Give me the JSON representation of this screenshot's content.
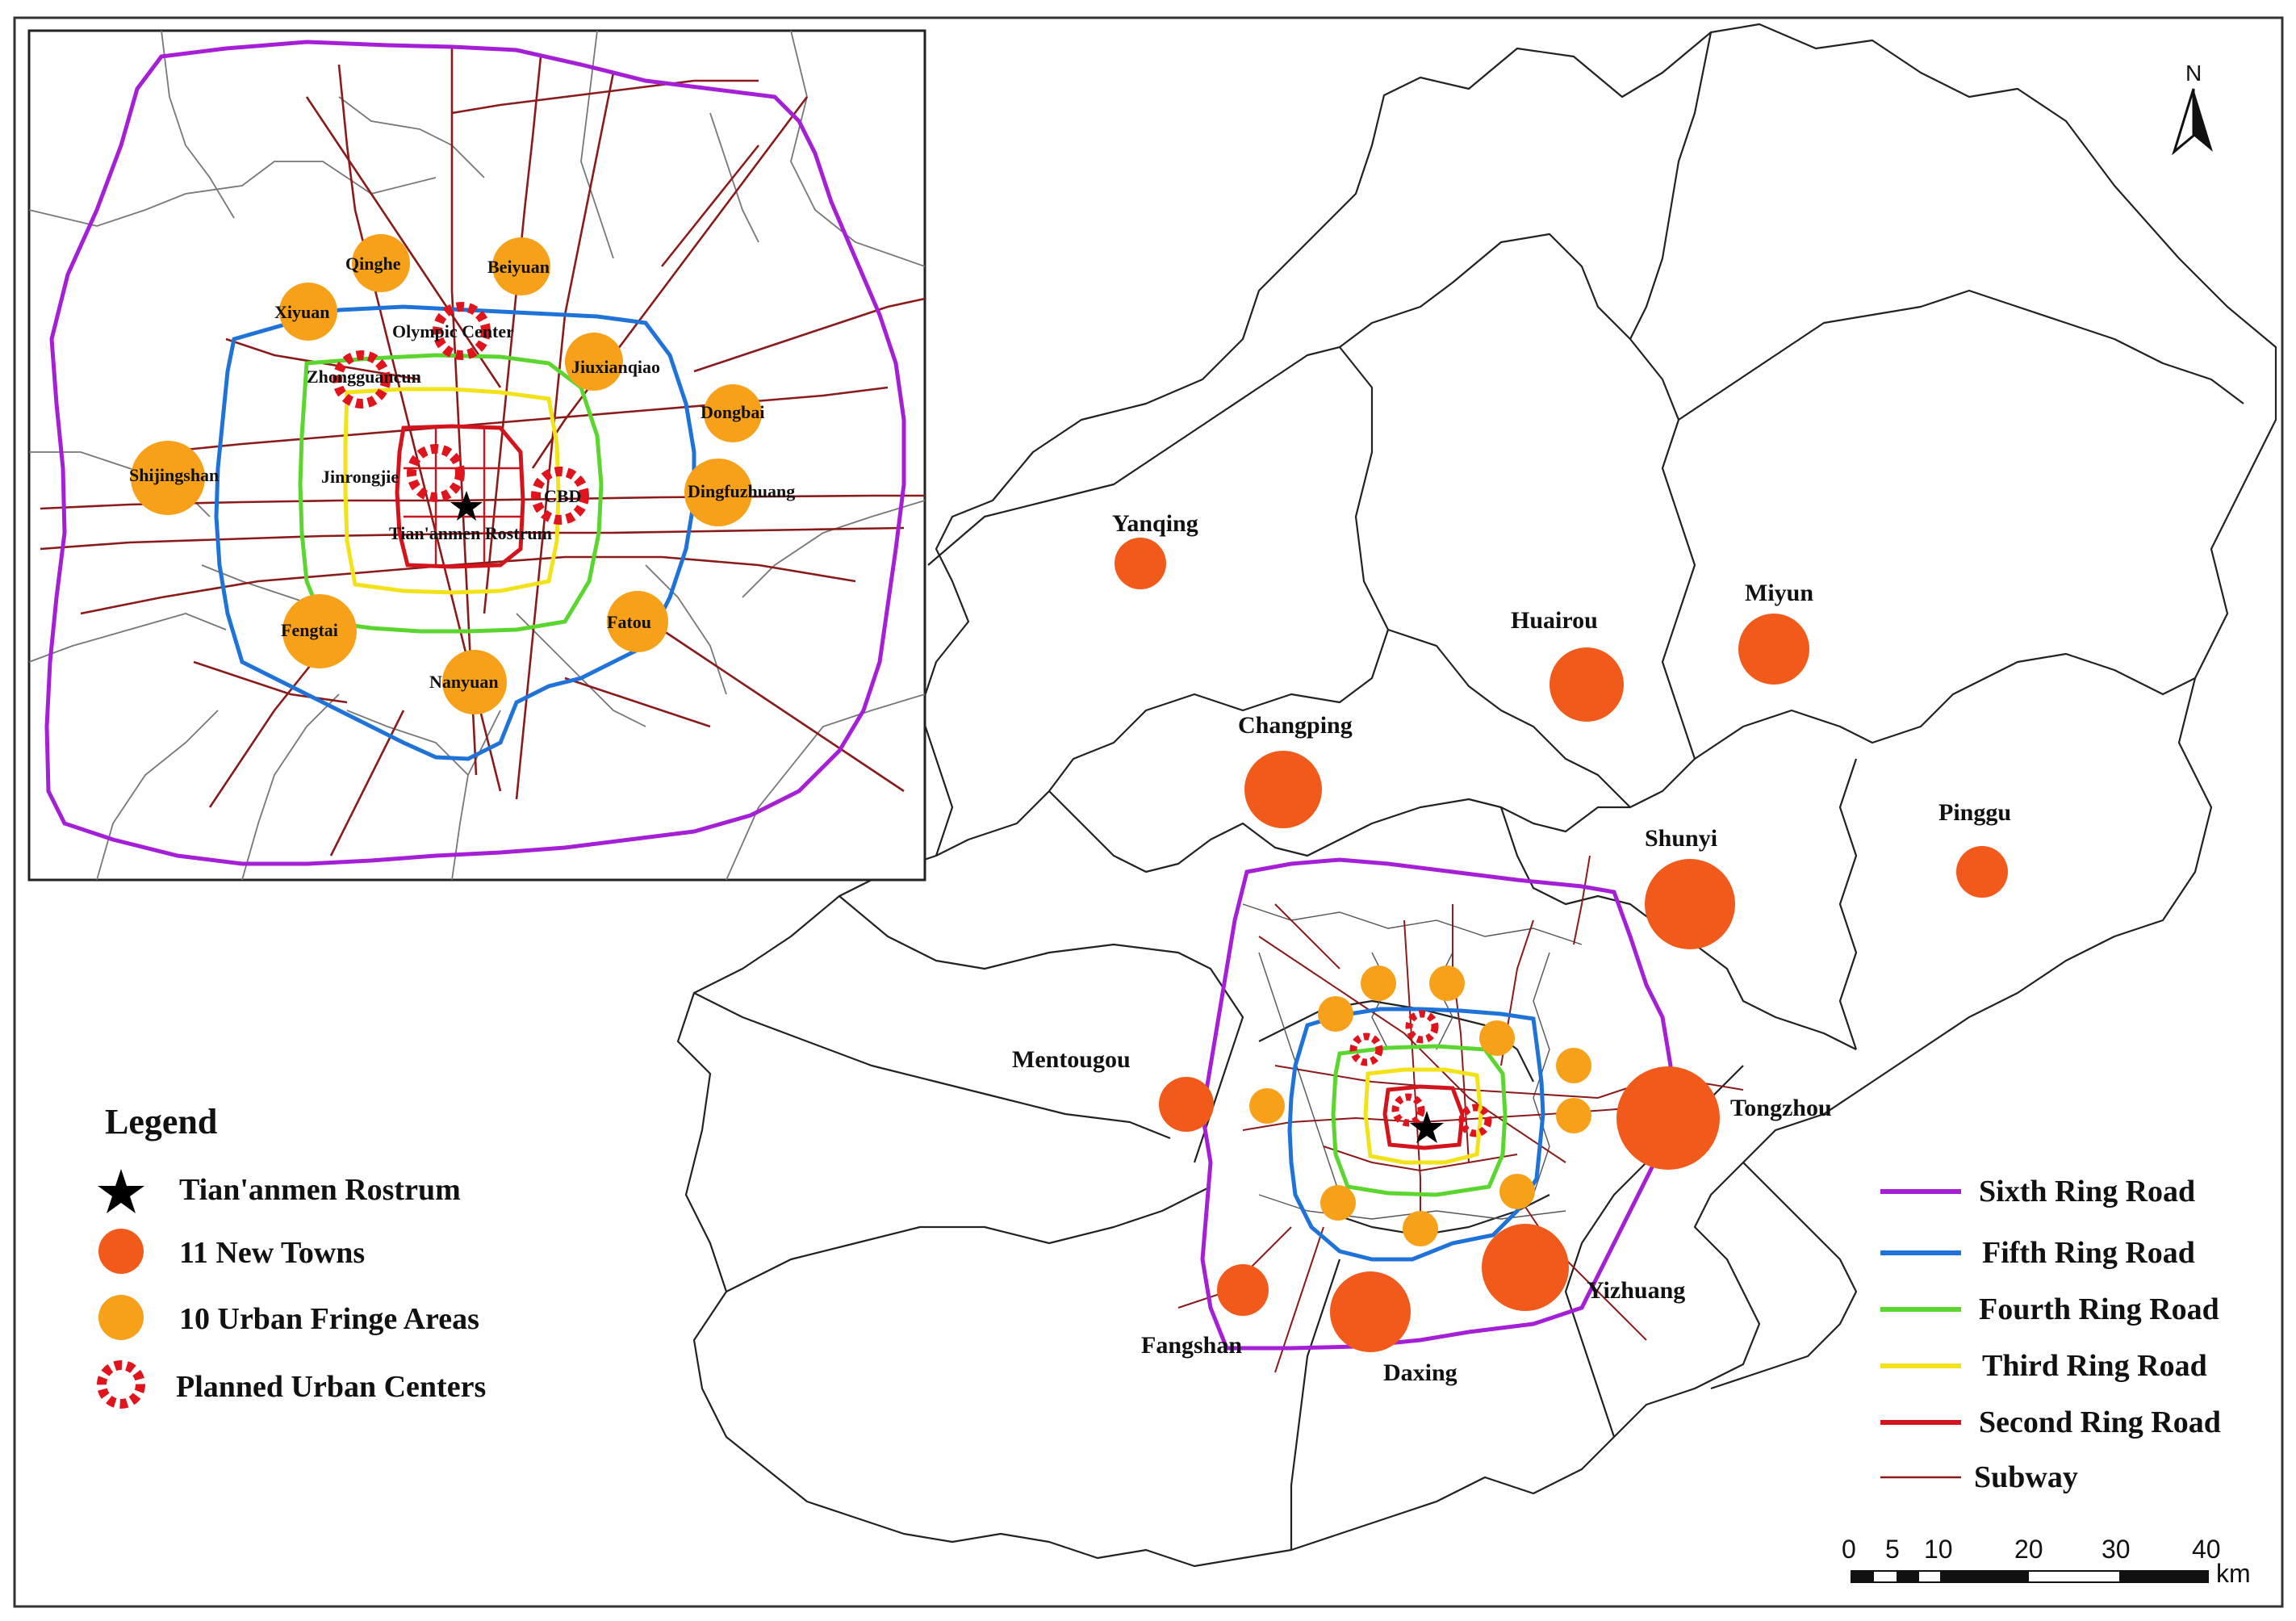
{
  "map": {
    "north_label": "N",
    "scale": {
      "ticks": [
        "0",
        "5",
        "10",
        "20",
        "30",
        "40"
      ],
      "unit": "km"
    }
  },
  "legend_left": {
    "title": "Legend",
    "items": [
      {
        "symbol": "star",
        "label": "Tian'anmen Rostrum"
      },
      {
        "symbol": "orange-dark-circle",
        "label": "11 New Towns",
        "color": "#f15a1a"
      },
      {
        "symbol": "orange-light-circle",
        "label": "10 Urban Fringe Areas",
        "color": "#f7a11a"
      },
      {
        "symbol": "center-burst",
        "label": "Planned Urban Centers",
        "color": "#e0141c"
      }
    ]
  },
  "legend_right": {
    "items": [
      {
        "label": "Sixth Ring Road",
        "color": "#a51fd6"
      },
      {
        "label": "Fifth Ring Road",
        "color": "#1f73d8"
      },
      {
        "label": "Fourth Ring Road",
        "color": "#5ad62e"
      },
      {
        "label": "Third Ring Road",
        "color": "#f2e21a"
      },
      {
        "label": "Second Ring Road",
        "color": "#d4141c"
      },
      {
        "label": "Subway",
        "color": "#8b1a1a"
      }
    ]
  },
  "new_towns": [
    {
      "name": "Yanqing"
    },
    {
      "name": "Huairou"
    },
    {
      "name": "Miyun"
    },
    {
      "name": "Changping"
    },
    {
      "name": "Pinggu"
    },
    {
      "name": "Shunyi"
    },
    {
      "name": "Mentougou"
    },
    {
      "name": "Tongzhou"
    },
    {
      "name": "Yizhuang"
    },
    {
      "name": "Fangshan"
    },
    {
      "name": "Daxing"
    }
  ],
  "inset": {
    "fringe_areas": [
      "Qinghe",
      "Beiyuan",
      "Xiyuan",
      "Jiuxianqiao",
      "Dongbai",
      "Shijingshan",
      "Dingfuzhuang",
      "Fengtai",
      "Fatou",
      "Nanyuan"
    ],
    "centers": [
      "Olympic Center",
      "Zhongguancun",
      "Jinrongjie",
      "CBD"
    ],
    "landmark": "Tian'anmen Rostrum"
  }
}
